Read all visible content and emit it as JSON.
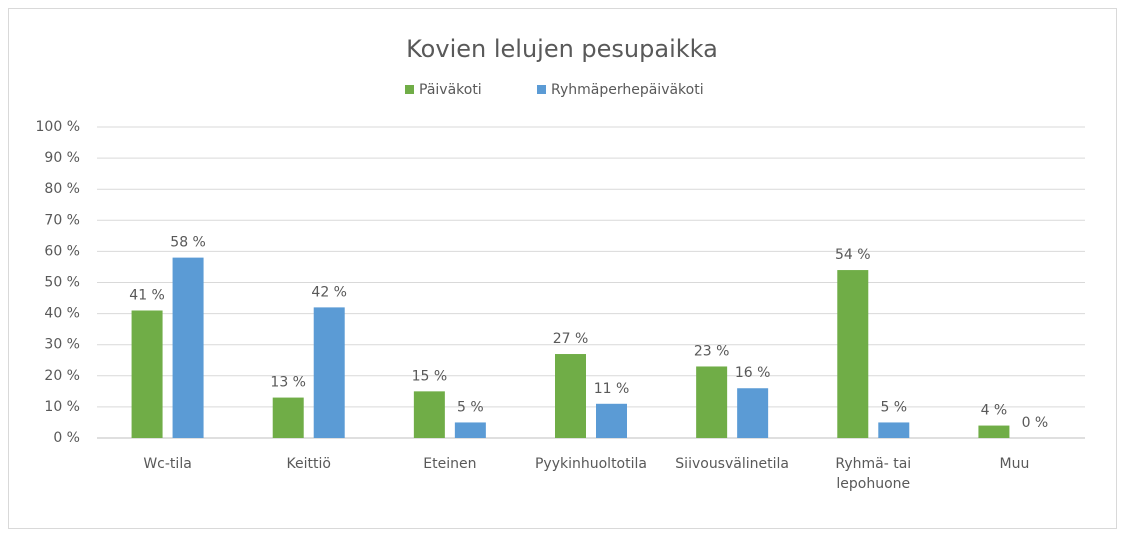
{
  "chart_data": {
    "type": "bar",
    "title": "Kovien lelujen pesupaikka",
    "categories": [
      "Wc-tila",
      "Keittiö",
      "Eteinen",
      "Pyykinhuoltotila",
      "Siivousvälinetila",
      "Ryhmä- tai lepohuone",
      "Muu"
    ],
    "series": [
      {
        "name": "Päiväkoti",
        "color": "#70ad47",
        "values": [
          41,
          13,
          15,
          27,
          23,
          54,
          4
        ],
        "value_labels": [
          "41 %",
          "13 %",
          "15 %",
          "27 %",
          "23 %",
          "54 %",
          "4 %"
        ]
      },
      {
        "name": "Ryhmäperhepäiväkoti",
        "color": "#5b9bd5",
        "values": [
          58,
          42,
          5,
          11,
          16,
          5,
          0
        ],
        "value_labels": [
          "58 %",
          "42 %",
          "5 %",
          "11 %",
          "16 %",
          "5 %",
          "0 %"
        ]
      }
    ],
    "ylim": [
      0,
      100
    ],
    "yticks": [
      {
        "value": 0,
        "label": "0 %"
      },
      {
        "value": 10,
        "label": "10 %"
      },
      {
        "value": 20,
        "label": "20 %"
      },
      {
        "value": 30,
        "label": "30 %"
      },
      {
        "value": 40,
        "label": "40 %"
      },
      {
        "value": 50,
        "label": "50 %"
      },
      {
        "value": 60,
        "label": "60 %"
      },
      {
        "value": 70,
        "label": "70 %"
      },
      {
        "value": 80,
        "label": "80 %"
      },
      {
        "value": 90,
        "label": "90 %"
      },
      {
        "value": 100,
        "label": "100 %"
      }
    ],
    "grid": true,
    "legend": "top"
  }
}
